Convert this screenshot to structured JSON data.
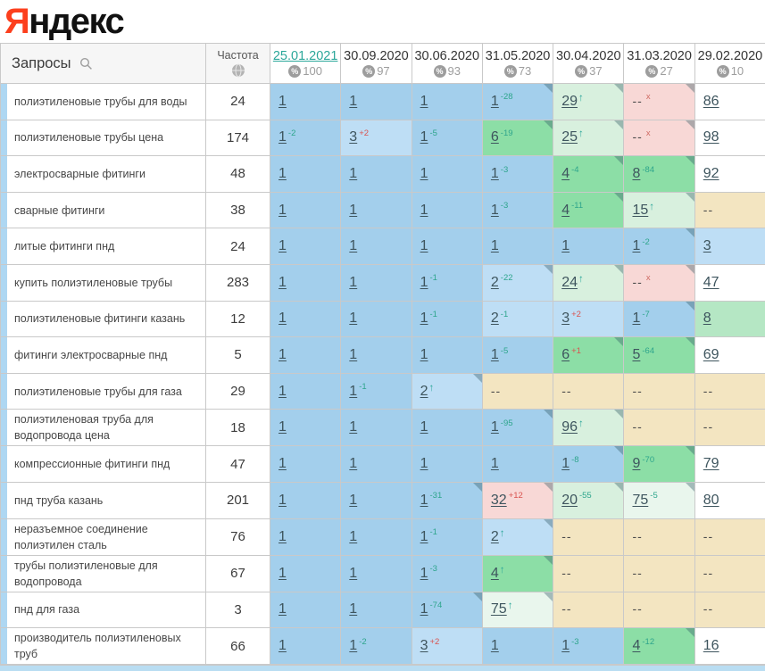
{
  "logo": {
    "first_letter": "Я",
    "rest": "ндекс"
  },
  "colors": {
    "logo_red": "#fc3f1d",
    "accent_teal": "#2ba79a",
    "change_up": "#2ea58c",
    "change_down": "#d9534f",
    "pos_top1": "#a3cfec",
    "pos_top3": "#bedef5",
    "pos_top10": "#8cdea6",
    "pos_top30": "#d8f0de",
    "dropped": "#f8d8d6",
    "no_data": "#f3e5c1"
  },
  "table": {
    "queries_header": "Запросы",
    "freq_header": "Частота",
    "pct_symbol": "%",
    "columns": [
      {
        "date": "25.01.2021",
        "pct": "100",
        "active": true
      },
      {
        "date": "30.09.2020",
        "pct": "97"
      },
      {
        "date": "30.06.2020",
        "pct": "93"
      },
      {
        "date": "31.05.2020",
        "pct": "73"
      },
      {
        "date": "30.04.2020",
        "pct": "37"
      },
      {
        "date": "31.03.2020",
        "pct": "27"
      },
      {
        "date": "29.02.2020",
        "pct": "10"
      }
    ],
    "rows": [
      {
        "query": "полиэтиленовые трубы для воды",
        "freq": "24",
        "cells": [
          {
            "v": "1",
            "bg": "b"
          },
          {
            "v": "1",
            "bg": "b"
          },
          {
            "v": "1",
            "bg": "b"
          },
          {
            "v": "1",
            "sup": "-28",
            "supc": "up",
            "bg": "b",
            "corner": true
          },
          {
            "v": "29",
            "arrow": "↑",
            "bg": "lg",
            "corner": true
          },
          {
            "v": "--",
            "x": "x",
            "bg": "pink",
            "corner": true
          },
          {
            "v": "86",
            "bg": "w"
          }
        ]
      },
      {
        "query": "полиэтиленовые трубы цена",
        "freq": "174",
        "cells": [
          {
            "v": "1",
            "sup": "-2",
            "supc": "up",
            "bg": "b"
          },
          {
            "v": "3",
            "sup": "+2",
            "supc": "down",
            "bg": "b2"
          },
          {
            "v": "1",
            "sup": "-5",
            "supc": "up",
            "bg": "b"
          },
          {
            "v": "6",
            "sup": "-19",
            "supc": "up",
            "bg": "g",
            "corner": true
          },
          {
            "v": "25",
            "arrow": "↑",
            "bg": "lg",
            "corner": true
          },
          {
            "v": "--",
            "x": "x",
            "bg": "pink",
            "corner": true
          },
          {
            "v": "98",
            "bg": "w"
          }
        ]
      },
      {
        "query": "электросварные фитинги",
        "freq": "48",
        "cells": [
          {
            "v": "1",
            "bg": "b"
          },
          {
            "v": "1",
            "bg": "b"
          },
          {
            "v": "1",
            "bg": "b"
          },
          {
            "v": "1",
            "sup": "-3",
            "supc": "up",
            "bg": "b"
          },
          {
            "v": "4",
            "sup": "-4",
            "supc": "up",
            "bg": "g",
            "corner": true
          },
          {
            "v": "8",
            "sup": "-84",
            "supc": "up",
            "bg": "g",
            "corner": true
          },
          {
            "v": "92",
            "bg": "w"
          }
        ]
      },
      {
        "query": "сварные фитинги",
        "freq": "38",
        "cells": [
          {
            "v": "1",
            "bg": "b"
          },
          {
            "v": "1",
            "bg": "b"
          },
          {
            "v": "1",
            "bg": "b"
          },
          {
            "v": "1",
            "sup": "-3",
            "supc": "up",
            "bg": "b"
          },
          {
            "v": "4",
            "sup": "-11",
            "supc": "up",
            "bg": "g",
            "corner": true
          },
          {
            "v": "15",
            "arrow": "↑",
            "bg": "lg",
            "corner": true
          },
          {
            "v": "--",
            "bg": "tan"
          }
        ]
      },
      {
        "query": "литые фитинги пнд",
        "freq": "24",
        "cells": [
          {
            "v": "1",
            "bg": "b"
          },
          {
            "v": "1",
            "bg": "b"
          },
          {
            "v": "1",
            "bg": "b"
          },
          {
            "v": "1",
            "bg": "b"
          },
          {
            "v": "1",
            "bg": "b"
          },
          {
            "v": "1",
            "sup": "-2",
            "supc": "up",
            "bg": "b",
            "corner": true
          },
          {
            "v": "3",
            "bg": "b2"
          }
        ]
      },
      {
        "query": "купить полиэтиленовые трубы",
        "freq": "283",
        "cells": [
          {
            "v": "1",
            "bg": "b"
          },
          {
            "v": "1",
            "bg": "b"
          },
          {
            "v": "1",
            "sup": "-1",
            "supc": "up",
            "bg": "b"
          },
          {
            "v": "2",
            "sup": "-22",
            "supc": "up",
            "bg": "b2",
            "corner": true
          },
          {
            "v": "24",
            "arrow": "↑",
            "bg": "lg",
            "corner": true
          },
          {
            "v": "--",
            "x": "x",
            "bg": "pink",
            "corner": true
          },
          {
            "v": "47",
            "bg": "w"
          }
        ]
      },
      {
        "query": "полиэтиленовые фитинги казань",
        "freq": "12",
        "cells": [
          {
            "v": "1",
            "bg": "b"
          },
          {
            "v": "1",
            "bg": "b"
          },
          {
            "v": "1",
            "sup": "-1",
            "supc": "up",
            "bg": "b"
          },
          {
            "v": "2",
            "sup": "-1",
            "supc": "up",
            "bg": "b2"
          },
          {
            "v": "3",
            "sup": "+2",
            "supc": "down",
            "bg": "b2"
          },
          {
            "v": "1",
            "sup": "-7",
            "supc": "up",
            "bg": "b",
            "corner": true
          },
          {
            "v": "8",
            "bg": "g2"
          }
        ]
      },
      {
        "query": "фитинги электросварные пнд",
        "freq": "5",
        "cells": [
          {
            "v": "1",
            "bg": "b"
          },
          {
            "v": "1",
            "bg": "b"
          },
          {
            "v": "1",
            "bg": "b"
          },
          {
            "v": "1",
            "sup": "-5",
            "supc": "up",
            "bg": "b"
          },
          {
            "v": "6",
            "sup": "+1",
            "supc": "down",
            "bg": "g",
            "corner": true
          },
          {
            "v": "5",
            "sup": "-64",
            "supc": "up",
            "bg": "g",
            "corner": true
          },
          {
            "v": "69",
            "bg": "w"
          }
        ]
      },
      {
        "query": "полиэтиленовые трубы для газа",
        "freq": "29",
        "cells": [
          {
            "v": "1",
            "bg": "b"
          },
          {
            "v": "1",
            "sup": "-1",
            "supc": "up",
            "bg": "b"
          },
          {
            "v": "2",
            "arrow": "↑",
            "bg": "b2",
            "corner": true
          },
          {
            "v": "--",
            "bg": "tan"
          },
          {
            "v": "--",
            "bg": "tan"
          },
          {
            "v": "--",
            "bg": "tan"
          },
          {
            "v": "--",
            "bg": "tan"
          }
        ]
      },
      {
        "query": "полиэтиленовая труба для водопровода цена",
        "freq": "18",
        "cells": [
          {
            "v": "1",
            "bg": "b"
          },
          {
            "v": "1",
            "bg": "b"
          },
          {
            "v": "1",
            "bg": "b"
          },
          {
            "v": "1",
            "sup": "-95",
            "supc": "up",
            "bg": "b",
            "corner": true
          },
          {
            "v": "96",
            "arrow": "↑",
            "bg": "lg",
            "corner": true
          },
          {
            "v": "--",
            "bg": "tan"
          },
          {
            "v": "--",
            "bg": "tan"
          }
        ]
      },
      {
        "query": "компрессионные фитинги пнд",
        "freq": "47",
        "cells": [
          {
            "v": "1",
            "bg": "b"
          },
          {
            "v": "1",
            "bg": "b"
          },
          {
            "v": "1",
            "bg": "b"
          },
          {
            "v": "1",
            "bg": "b"
          },
          {
            "v": "1",
            "sup": "-8",
            "supc": "up",
            "bg": "b",
            "corner": true
          },
          {
            "v": "9",
            "sup": "-70",
            "supc": "up",
            "bg": "g",
            "corner": true
          },
          {
            "v": "79",
            "bg": "w"
          }
        ]
      },
      {
        "query": "пнд труба казань",
        "freq": "201",
        "cells": [
          {
            "v": "1",
            "bg": "b"
          },
          {
            "v": "1",
            "bg": "b"
          },
          {
            "v": "1",
            "sup": "-31",
            "supc": "up",
            "bg": "b",
            "corner": true
          },
          {
            "v": "32",
            "sup": "+12",
            "supc": "down",
            "bg": "pink",
            "corner": true
          },
          {
            "v": "20",
            "sup": "-55",
            "supc": "up",
            "bg": "lg",
            "corner": true
          },
          {
            "v": "75",
            "sup": "-5",
            "supc": "up",
            "bg": "vlg",
            "corner": true
          },
          {
            "v": "80",
            "bg": "w"
          }
        ]
      },
      {
        "query": "неразъемное соединение полиэтилен сталь",
        "freq": "76",
        "cells": [
          {
            "v": "1",
            "bg": "b"
          },
          {
            "v": "1",
            "bg": "b"
          },
          {
            "v": "1",
            "sup": "-1",
            "supc": "up",
            "bg": "b"
          },
          {
            "v": "2",
            "arrow": "↑",
            "bg": "b2",
            "corner": true
          },
          {
            "v": "--",
            "bg": "tan"
          },
          {
            "v": "--",
            "bg": "tan"
          },
          {
            "v": "--",
            "bg": "tan"
          }
        ]
      },
      {
        "query": "трубы полиэтиленовые для водопровода",
        "freq": "67",
        "cells": [
          {
            "v": "1",
            "bg": "b"
          },
          {
            "v": "1",
            "bg": "b"
          },
          {
            "v": "1",
            "sup": "-3",
            "supc": "up",
            "bg": "b"
          },
          {
            "v": "4",
            "arrow": "↑",
            "bg": "g",
            "corner": true
          },
          {
            "v": "--",
            "bg": "tan"
          },
          {
            "v": "--",
            "bg": "tan"
          },
          {
            "v": "--",
            "bg": "tan"
          }
        ]
      },
      {
        "query": "пнд для газа",
        "freq": "3",
        "cells": [
          {
            "v": "1",
            "bg": "b"
          },
          {
            "v": "1",
            "bg": "b"
          },
          {
            "v": "1",
            "sup": "-74",
            "supc": "up",
            "bg": "b",
            "corner": true
          },
          {
            "v": "75",
            "arrow": "↑",
            "bg": "vlg",
            "corner": true
          },
          {
            "v": "--",
            "bg": "tan"
          },
          {
            "v": "--",
            "bg": "tan"
          },
          {
            "v": "--",
            "bg": "tan"
          }
        ]
      },
      {
        "query": "производитель полиэтиленовых труб",
        "freq": "66",
        "cells": [
          {
            "v": "1",
            "bg": "b"
          },
          {
            "v": "1",
            "sup": "-2",
            "supc": "up",
            "bg": "b"
          },
          {
            "v": "3",
            "sup": "+2",
            "supc": "down",
            "bg": "b2"
          },
          {
            "v": "1",
            "bg": "b"
          },
          {
            "v": "1",
            "sup": "-3",
            "supc": "up",
            "bg": "b"
          },
          {
            "v": "4",
            "sup": "-12",
            "supc": "up",
            "bg": "g",
            "corner": true
          },
          {
            "v": "16",
            "bg": "w"
          }
        ]
      }
    ]
  }
}
